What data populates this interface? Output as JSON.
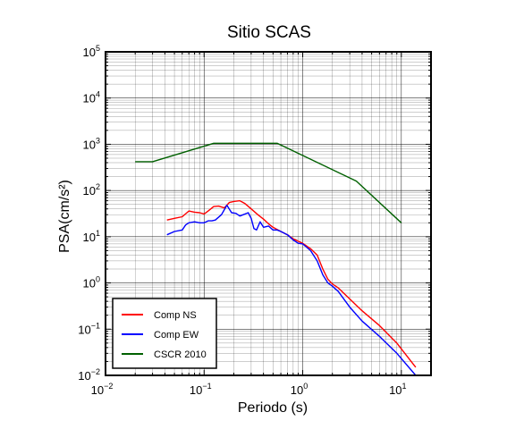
{
  "chart_data": {
    "type": "line",
    "title": "Sitio SCAS",
    "xlabel": "Periodo (s)",
    "ylabel": "PSA(cm/s²)",
    "xscale": "log",
    "yscale": "log",
    "xlim": [
      0.01,
      20
    ],
    "ylim": [
      0.01,
      100000
    ],
    "x_ticks": [
      {
        "value": 0.01,
        "base": "10",
        "exp": "−2"
      },
      {
        "value": 0.1,
        "base": "10",
        "exp": "−1"
      },
      {
        "value": 1,
        "base": "10",
        "exp": "0"
      },
      {
        "value": 10,
        "base": "10",
        "exp": "1"
      }
    ],
    "y_ticks": [
      {
        "value": 0.01,
        "base": "10",
        "exp": "−2"
      },
      {
        "value": 0.1,
        "base": "10",
        "exp": "−1"
      },
      {
        "value": 1,
        "base": "10",
        "exp": "0"
      },
      {
        "value": 10,
        "base": "10",
        "exp": "1"
      },
      {
        "value": 100,
        "base": "10",
        "exp": "2"
      },
      {
        "value": 1000,
        "base": "10",
        "exp": "3"
      },
      {
        "value": 10000,
        "base": "10",
        "exp": "4"
      },
      {
        "value": 100000,
        "base": "10",
        "exp": "5"
      }
    ],
    "grid": true,
    "legend_position": "bottom-left",
    "series": [
      {
        "name": "Comp NS",
        "color": "#ff0000",
        "points": [
          [
            0.042,
            23
          ],
          [
            0.05,
            25
          ],
          [
            0.06,
            27
          ],
          [
            0.07,
            36
          ],
          [
            0.08,
            34
          ],
          [
            0.09,
            33
          ],
          [
            0.1,
            31
          ],
          [
            0.11,
            36
          ],
          [
            0.125,
            45
          ],
          [
            0.14,
            46
          ],
          [
            0.16,
            42
          ],
          [
            0.18,
            55
          ],
          [
            0.2,
            58
          ],
          [
            0.23,
            60
          ],
          [
            0.26,
            52
          ],
          [
            0.3,
            40
          ],
          [
            0.35,
            30
          ],
          [
            0.4,
            24
          ],
          [
            0.45,
            19
          ],
          [
            0.5,
            16
          ],
          [
            0.6,
            13
          ],
          [
            0.7,
            11
          ],
          [
            0.8,
            9
          ],
          [
            0.9,
            8
          ],
          [
            1.0,
            7.2
          ],
          [
            1.2,
            5.5
          ],
          [
            1.4,
            4
          ],
          [
            1.6,
            2
          ],
          [
            1.8,
            1.2
          ],
          [
            2.0,
            0.95
          ],
          [
            2.3,
            0.78
          ],
          [
            3.0,
            0.45
          ],
          [
            4.0,
            0.25
          ],
          [
            6.0,
            0.12
          ],
          [
            9.0,
            0.05
          ],
          [
            14.0,
            0.015
          ]
        ]
      },
      {
        "name": "Comp EW",
        "color": "#0000ff",
        "points": [
          [
            0.042,
            11
          ],
          [
            0.05,
            13
          ],
          [
            0.06,
            14
          ],
          [
            0.065,
            18
          ],
          [
            0.07,
            20
          ],
          [
            0.08,
            21
          ],
          [
            0.09,
            20
          ],
          [
            0.1,
            20
          ],
          [
            0.11,
            22
          ],
          [
            0.12,
            22
          ],
          [
            0.13,
            23
          ],
          [
            0.15,
            30
          ],
          [
            0.17,
            48
          ],
          [
            0.19,
            33
          ],
          [
            0.21,
            32
          ],
          [
            0.23,
            28
          ],
          [
            0.25,
            30
          ],
          [
            0.28,
            33
          ],
          [
            0.3,
            25
          ],
          [
            0.32,
            15
          ],
          [
            0.34,
            14
          ],
          [
            0.37,
            21
          ],
          [
            0.4,
            16
          ],
          [
            0.45,
            17
          ],
          [
            0.5,
            14
          ],
          [
            0.55,
            14
          ],
          [
            0.6,
            13
          ],
          [
            0.7,
            11
          ],
          [
            0.8,
            8.5
          ],
          [
            0.9,
            7.2
          ],
          [
            1.0,
            7
          ],
          [
            1.2,
            5
          ],
          [
            1.4,
            3
          ],
          [
            1.6,
            1.5
          ],
          [
            1.8,
            1.0
          ],
          [
            2.0,
            0.85
          ],
          [
            2.3,
            0.65
          ],
          [
            3.0,
            0.3
          ],
          [
            4.0,
            0.15
          ],
          [
            6.0,
            0.07
          ],
          [
            9.0,
            0.03
          ],
          [
            14.0,
            0.01
          ]
        ]
      },
      {
        "name": "CSCR 2010",
        "color": "#006000",
        "points": [
          [
            0.02,
            420
          ],
          [
            0.03,
            420
          ],
          [
            0.125,
            1050
          ],
          [
            0.55,
            1050
          ],
          [
            3.5,
            160
          ],
          [
            10.0,
            20
          ]
        ]
      }
    ]
  }
}
